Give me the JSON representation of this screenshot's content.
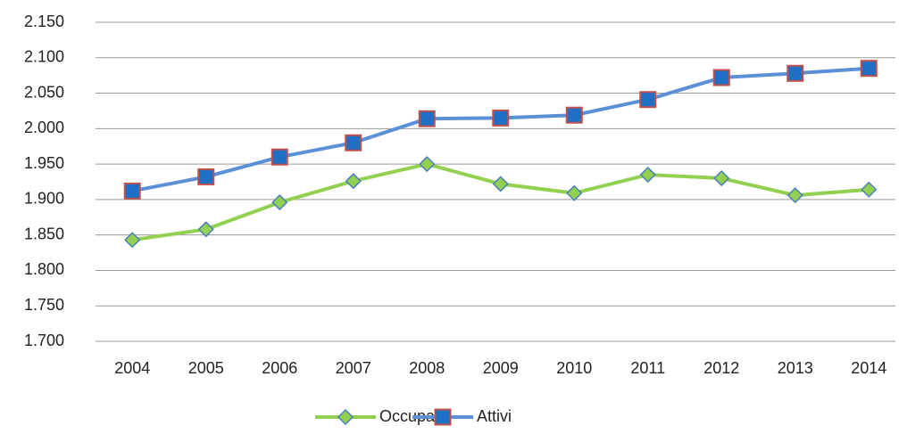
{
  "chart_data": {
    "type": "line",
    "categories": [
      "2004",
      "2005",
      "2006",
      "2007",
      "2008",
      "2009",
      "2010",
      "2011",
      "2012",
      "2013",
      "2014"
    ],
    "series": [
      {
        "name": "Occupati",
        "color": "#92d050",
        "marker": "diamond",
        "marker_edge": "#4a7ebb",
        "values": [
          1843,
          1858,
          1896,
          1926,
          1950,
          1922,
          1909,
          1935,
          1930,
          1906,
          1914
        ]
      },
      {
        "name": "Attivi",
        "color": "#5b8fd6",
        "marker": "square",
        "marker_fill": "#1f6fc5",
        "marker_edge": "#c0504d",
        "values": [
          1912,
          1932,
          1960,
          1980,
          2014,
          2015,
          2019,
          2041,
          2072,
          2078,
          2085
        ]
      }
    ],
    "ylim": [
      1700,
      2150
    ],
    "yticks": [
      {
        "value": 1700,
        "label": "1.700"
      },
      {
        "value": 1750,
        "label": "1.750"
      },
      {
        "value": 1800,
        "label": "1.800"
      },
      {
        "value": 1850,
        "label": "1.850"
      },
      {
        "value": 1900,
        "label": "1.900"
      },
      {
        "value": 1950,
        "label": "1.950"
      },
      {
        "value": 2000,
        "label": "2.000"
      },
      {
        "value": 2050,
        "label": "2.050"
      },
      {
        "value": 2100,
        "label": "2.100"
      },
      {
        "value": 2150,
        "label": "2.150"
      }
    ],
    "grid": true,
    "legend": "bottom"
  }
}
